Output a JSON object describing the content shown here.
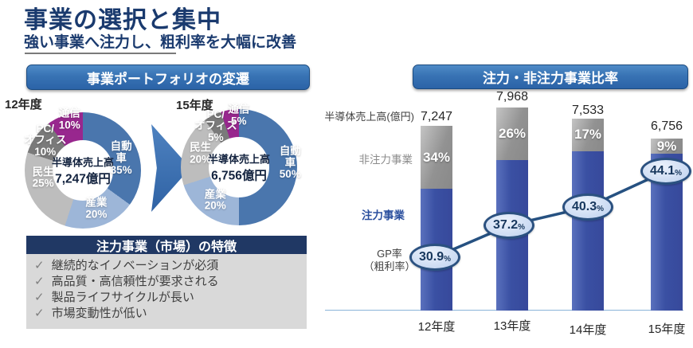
{
  "page": {
    "title": "事業の選択と集中",
    "subtitle": "強い事業へ注力し、粗利率を大幅に改善"
  },
  "colors": {
    "title_navy": "#1a3a6e",
    "header_button_blue": "#2b63a7",
    "features_header_navy": "#203864",
    "bar_focus_blue": "#3a50a3",
    "bar_nonfocus_gray": "#929292",
    "gp_line_blue": "#265181",
    "donut_auto_blue": "#4a76ad",
    "donut_industry_blue": "#9db6d8",
    "donut_consumer_gray": "#bdbdbd",
    "donut_pc_gray": "#7a7a7a",
    "donut_telecom_purple": "#98278e"
  },
  "left_panel": {
    "header": "事業ポートフォリオの変遷",
    "donuts": [
      {
        "year": "12年度",
        "center_line1": "半導体売上高",
        "center_line2": "7,247億円",
        "segments": [
          {
            "label": "自動車",
            "pct_label": "35%",
            "value": 35,
            "color": "#4a76ad"
          },
          {
            "label": "産業",
            "pct_label": "20%",
            "value": 20,
            "color": "#9db6d8"
          },
          {
            "label": "民生",
            "pct_label": "25%",
            "value": 25,
            "color": "#bdbdbd"
          },
          {
            "label": "PC/オフィス",
            "pct_label": "10%",
            "value": 10,
            "color": "#7a7a7a"
          },
          {
            "label": "通信",
            "pct_label": "10%",
            "value": 10,
            "color": "#98278e"
          }
        ]
      },
      {
        "year": "15年度",
        "center_line1": "半導体売上高",
        "center_line2": "6,756億円",
        "segments": [
          {
            "label": "自動車",
            "pct_label": "50%",
            "value": 50,
            "color": "#4a76ad"
          },
          {
            "label": "産業",
            "pct_label": "20%",
            "value": 20,
            "color": "#9db6d8"
          },
          {
            "label": "民生",
            "pct_label": "20%",
            "value": 20,
            "color": "#bdbdbd"
          },
          {
            "label": "PC/オフィス",
            "pct_label": "5%",
            "value": 5,
            "color": "#7a7a7a"
          },
          {
            "label": "通信",
            "pct_label": "5%",
            "value": 5,
            "color": "#98278e"
          }
        ]
      }
    ],
    "features_box": {
      "header": "注力事業（市場）の特徴",
      "check_icon": "✓",
      "items": [
        "継続的なイノベーションが必須",
        "高品質・高信頼性が要求される",
        "製品ライフサイクルが長い",
        "市場変動性が低い"
      ]
    }
  },
  "right_panel": {
    "header": "注力・非注力事業比率",
    "y_axis_label": "半導体売上高(億円)",
    "series_label_nonfocus": "非注力事業",
    "series_label_focus": "注力事業",
    "gp_label_line1": "GP率",
    "gp_label_line2": "（粗利率）",
    "categories": [
      "12年度",
      "13年度",
      "14年度",
      "15年度"
    ],
    "totals": [
      "7,247",
      "7,968",
      "7,533",
      "6,756"
    ],
    "nonfocus_pct_labels": [
      "34%",
      "26%",
      "17%",
      "9%"
    ],
    "gp_values": [
      "30.9",
      "37.2",
      "40.3",
      "44.1"
    ],
    "gp_unit": "%"
  },
  "chart_data": [
    {
      "type": "pie",
      "title": "12年度",
      "center_label": "半導体売上高 7,247億円",
      "labels": [
        "自動車",
        "産業",
        "民生",
        "PC/オフィス",
        "通信"
      ],
      "values": [
        35,
        20,
        25,
        10,
        10
      ],
      "unit": "%"
    },
    {
      "type": "pie",
      "title": "15年度",
      "center_label": "半導体売上高 6,756億円",
      "labels": [
        "自動車",
        "産業",
        "民生",
        "PC/オフィス",
        "通信"
      ],
      "values": [
        50,
        20,
        20,
        5,
        5
      ],
      "unit": "%"
    },
    {
      "type": "bar",
      "title": "注力・非注力事業比率",
      "stacked": true,
      "categories": [
        "12年度",
        "13年度",
        "14年度",
        "15年度"
      ],
      "series": [
        {
          "name": "注力事業",
          "values": [
            66,
            74,
            83,
            91
          ],
          "unit": "%"
        },
        {
          "name": "非注力事業",
          "values": [
            34,
            26,
            17,
            9
          ],
          "unit": "%"
        }
      ],
      "bar_totals": {
        "label": "半導体売上高(億円)",
        "values": [
          7247,
          7968,
          7533,
          6756
        ]
      },
      "line": {
        "name": "GP率（粗利率）",
        "values": [
          30.9,
          37.2,
          40.3,
          44.1
        ],
        "unit": "%"
      },
      "legend_position": "left",
      "grid": false
    }
  ]
}
